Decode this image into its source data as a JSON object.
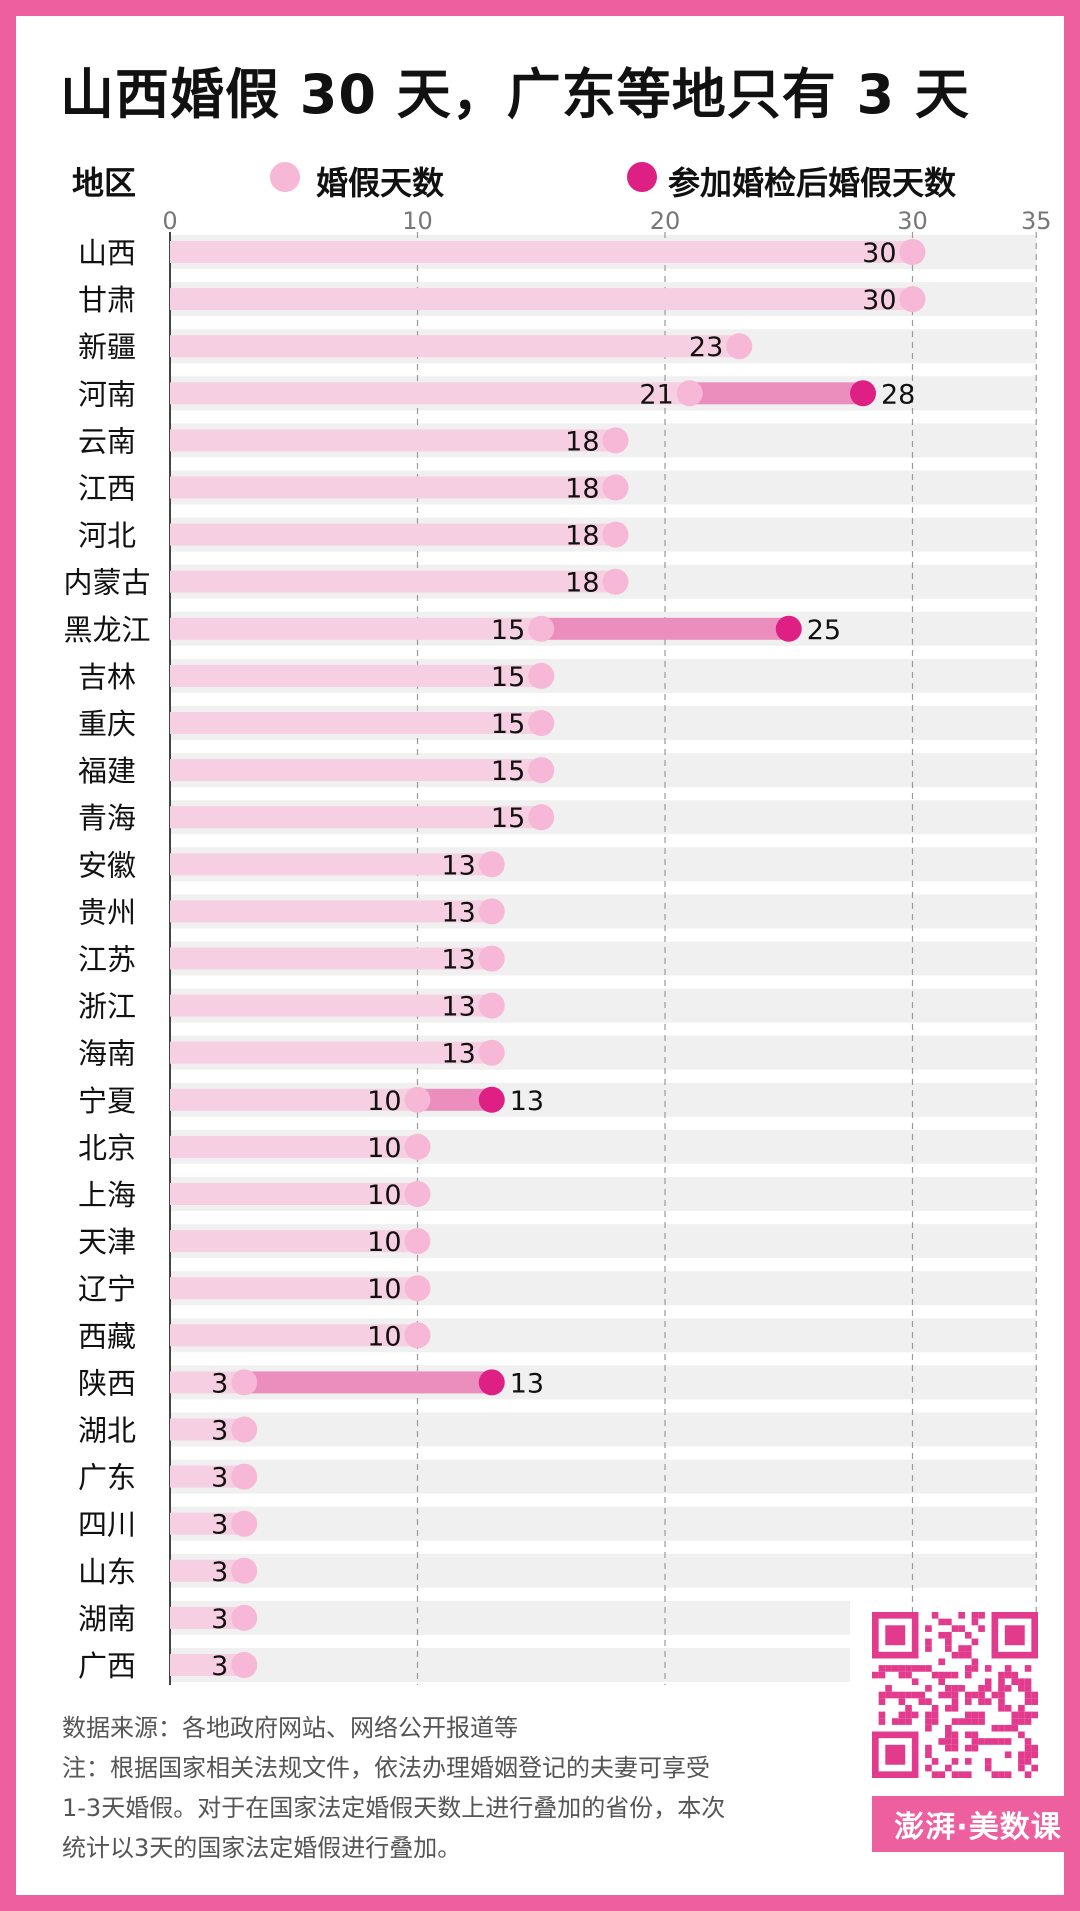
{
  "title": "山西婚假 30 天，广东等地只有 3 天",
  "header": {
    "region_label": "地区",
    "legend_base": "婚假天数",
    "legend_extra": "参加婚检后婚假天数"
  },
  "colors": {
    "frame": "#ee5fa0",
    "track": "#f0f0f0",
    "base_bar": "#f6cfe2",
    "base_dot": "#f7b7d6",
    "extra_bar": "#eb8ebd",
    "extra_dot": "#de1f83"
  },
  "chart_data": {
    "type": "bar",
    "orientation": "horizontal",
    "xlim": [
      0,
      35
    ],
    "x_ticks": [
      "0",
      "10",
      "20",
      "30",
      "35"
    ],
    "grid": true,
    "legend_placement": "top",
    "categories": [
      "山西",
      "甘肃",
      "新疆",
      "河南",
      "云南",
      "江西",
      "河北",
      "内蒙古",
      "黑龙江",
      "吉林",
      "重庆",
      "福建",
      "青海",
      "安徽",
      "贵州",
      "江苏",
      "浙江",
      "海南",
      "宁夏",
      "北京",
      "上海",
      "天津",
      "辽宁",
      "西藏",
      "陕西",
      "湖北",
      "广东",
      "四川",
      "山东",
      "湖南",
      "广西"
    ],
    "series": [
      {
        "name": "婚假天数",
        "values": [
          30,
          30,
          23,
          21,
          18,
          18,
          18,
          18,
          15,
          15,
          15,
          15,
          15,
          13,
          13,
          13,
          13,
          13,
          10,
          10,
          10,
          10,
          10,
          10,
          3,
          3,
          3,
          3,
          3,
          3,
          3
        ]
      },
      {
        "name": "参加婚检后婚假天数",
        "values": [
          null,
          null,
          null,
          28,
          null,
          null,
          null,
          null,
          25,
          null,
          null,
          null,
          null,
          null,
          null,
          null,
          null,
          null,
          13,
          null,
          null,
          null,
          null,
          null,
          13,
          null,
          null,
          null,
          null,
          null,
          null
        ]
      }
    ]
  },
  "notes": {
    "source": "数据来源：各地政府网站、网络公开报道等",
    "line1": "注：根据国家相关法规文件，依法办理婚姻登记的夫妻可享受",
    "line2": "1-3天婚假。对于在国家法定婚假天数上进行叠加的省份，本次",
    "line3": "统计以3天的国家法定婚假进行叠加。"
  },
  "brand": "澎湃·美数课",
  "qr_icon": "qr-code-icon"
}
